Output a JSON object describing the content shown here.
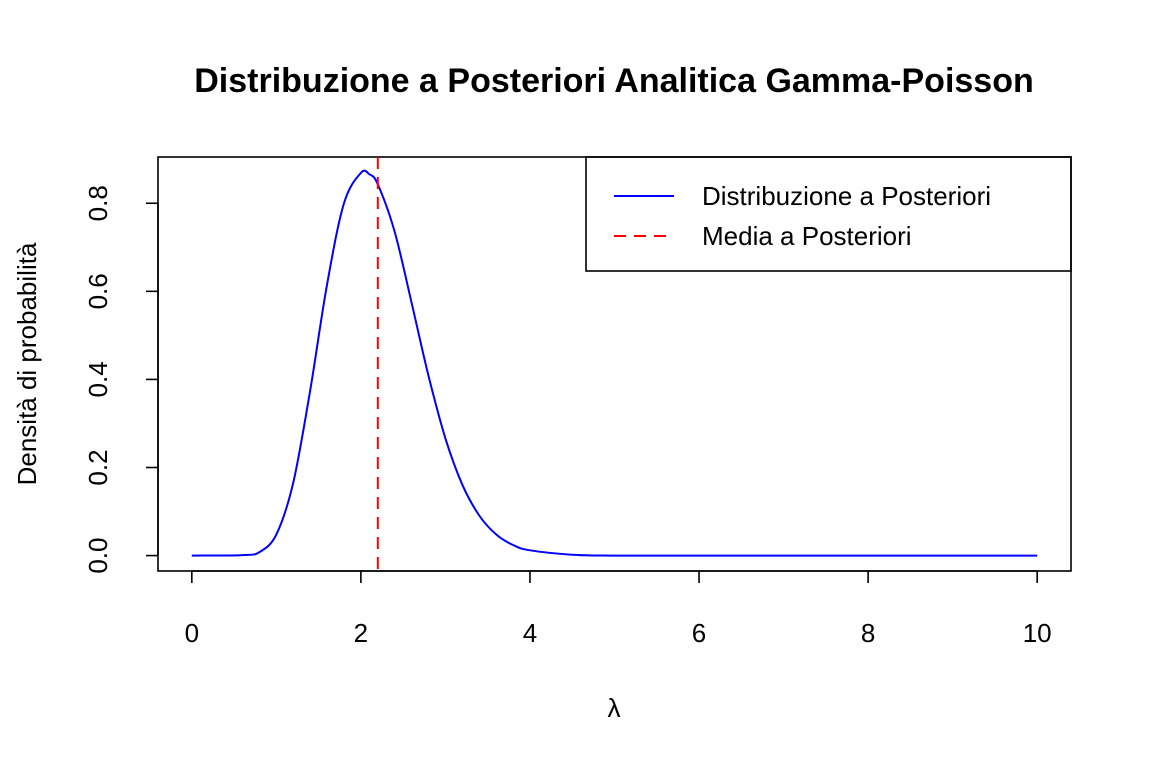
{
  "chart_data": {
    "type": "line",
    "title": "Distribuzione a Posteriori Analitica Gamma-Poisson",
    "xlabel": "λ",
    "ylabel": "Densità di probabilità",
    "xlim": [
      -0.4,
      10.4
    ],
    "ylim": [
      -0.035,
      0.905
    ],
    "x_ticks": [
      0,
      2,
      4,
      6,
      8,
      10
    ],
    "x_tick_labels": [
      "0",
      "2",
      "4",
      "6",
      "8",
      "10"
    ],
    "y_ticks": [
      0.0,
      0.2,
      0.4,
      0.6,
      0.8
    ],
    "y_tick_labels": [
      "0.0",
      "0.2",
      "0.4",
      "0.6",
      "0.8"
    ],
    "grid": false,
    "legend_position": "top-right",
    "series": [
      {
        "name": "Distribuzione a Posteriori",
        "style": "solid",
        "color": "#0000ff",
        "x": [
          0,
          0.6,
          0.8,
          1.0,
          1.2,
          1.4,
          1.6,
          1.8,
          2.0,
          2.1,
          2.2,
          2.4,
          2.6,
          2.8,
          3.0,
          3.2,
          3.4,
          3.6,
          3.8,
          4.0,
          4.5,
          5.0,
          6.0,
          8.0,
          10.0
        ],
        "y": [
          0.0,
          0.001,
          0.008,
          0.048,
          0.166,
          0.375,
          0.616,
          0.8,
          0.869,
          0.866,
          0.843,
          0.735,
          0.574,
          0.408,
          0.266,
          0.161,
          0.091,
          0.048,
          0.024,
          0.012,
          0.002,
          0.0,
          0.0,
          0.0,
          0.0
        ]
      },
      {
        "name": "Media a Posteriori",
        "style": "dashed",
        "color": "#ff0000",
        "x": 2.2
      }
    ]
  }
}
